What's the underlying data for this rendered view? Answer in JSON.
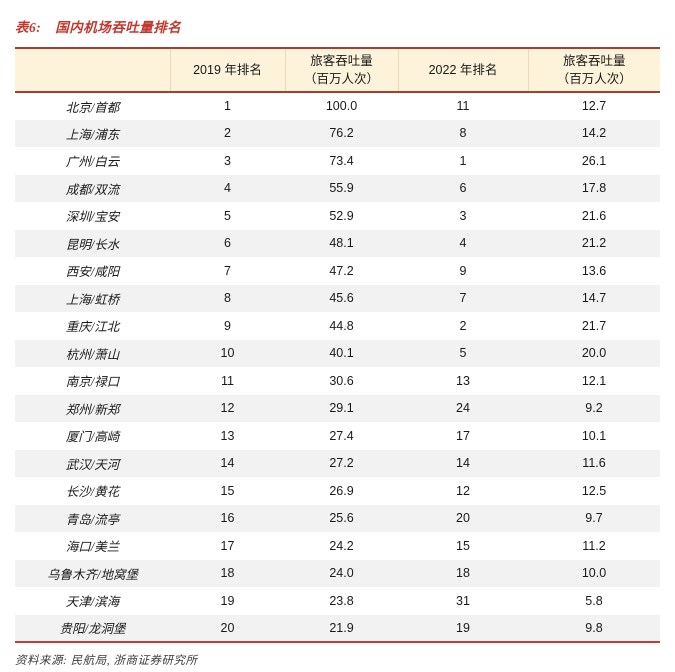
{
  "title": {
    "prefix": "表6:",
    "text": "国内机场吞吐量排名"
  },
  "colors": {
    "title_red": "#c2382e",
    "header_bg": "#fcf3da",
    "header_rule": "#a43e32",
    "bottom_rule": "#cb3b36",
    "alt_row_bg": "#f2f2f2",
    "body_text": "#1a1a1a"
  },
  "source_note": "资料来源: 民航局, 浙商证券研究所",
  "chart_data": {
    "type": "table",
    "title": "国内机场吞吐量排名",
    "columns": [
      "机场",
      "2019 年排名",
      "旅客吞吐量（百万人次）",
      "2022 年排名",
      "旅客吞吐量（百万人次）"
    ]
  },
  "table": {
    "columns": [
      "",
      "2019 年排名",
      "旅客吞吐量\n（百万人次）",
      "2022 年排名",
      "旅客吞吐量\n（百万人次）"
    ],
    "rows": [
      [
        "北京/首都",
        "1",
        "100.0",
        "11",
        "12.7"
      ],
      [
        "上海/浦东",
        "2",
        "76.2",
        "8",
        "14.2"
      ],
      [
        "广州/白云",
        "3",
        "73.4",
        "1",
        "26.1"
      ],
      [
        "成都/双流",
        "4",
        "55.9",
        "6",
        "17.8"
      ],
      [
        "深圳/宝安",
        "5",
        "52.9",
        "3",
        "21.6"
      ],
      [
        "昆明/长水",
        "6",
        "48.1",
        "4",
        "21.2"
      ],
      [
        "西安/咸阳",
        "7",
        "47.2",
        "9",
        "13.6"
      ],
      [
        "上海/虹桥",
        "8",
        "45.6",
        "7",
        "14.7"
      ],
      [
        "重庆/江北",
        "9",
        "44.8",
        "2",
        "21.7"
      ],
      [
        "杭州/萧山",
        "10",
        "40.1",
        "5",
        "20.0"
      ],
      [
        "南京/禄口",
        "11",
        "30.6",
        "13",
        "12.1"
      ],
      [
        "郑州/新郑",
        "12",
        "29.1",
        "24",
        "9.2"
      ],
      [
        "厦门/高崎",
        "13",
        "27.4",
        "17",
        "10.1"
      ],
      [
        "武汉/天河",
        "14",
        "27.2",
        "14",
        "11.6"
      ],
      [
        "长沙/黄花",
        "15",
        "26.9",
        "12",
        "12.5"
      ],
      [
        "青岛/流亭",
        "16",
        "25.6",
        "20",
        "9.7"
      ],
      [
        "海口/美兰",
        "17",
        "24.2",
        "15",
        "11.2"
      ],
      [
        "乌鲁木齐/地窝堡",
        "18",
        "24.0",
        "18",
        "10.0"
      ],
      [
        "天津/滨海",
        "19",
        "23.8",
        "31",
        "5.8"
      ],
      [
        "贵阳/龙洞堡",
        "20",
        "21.9",
        "19",
        "9.8"
      ]
    ]
  }
}
